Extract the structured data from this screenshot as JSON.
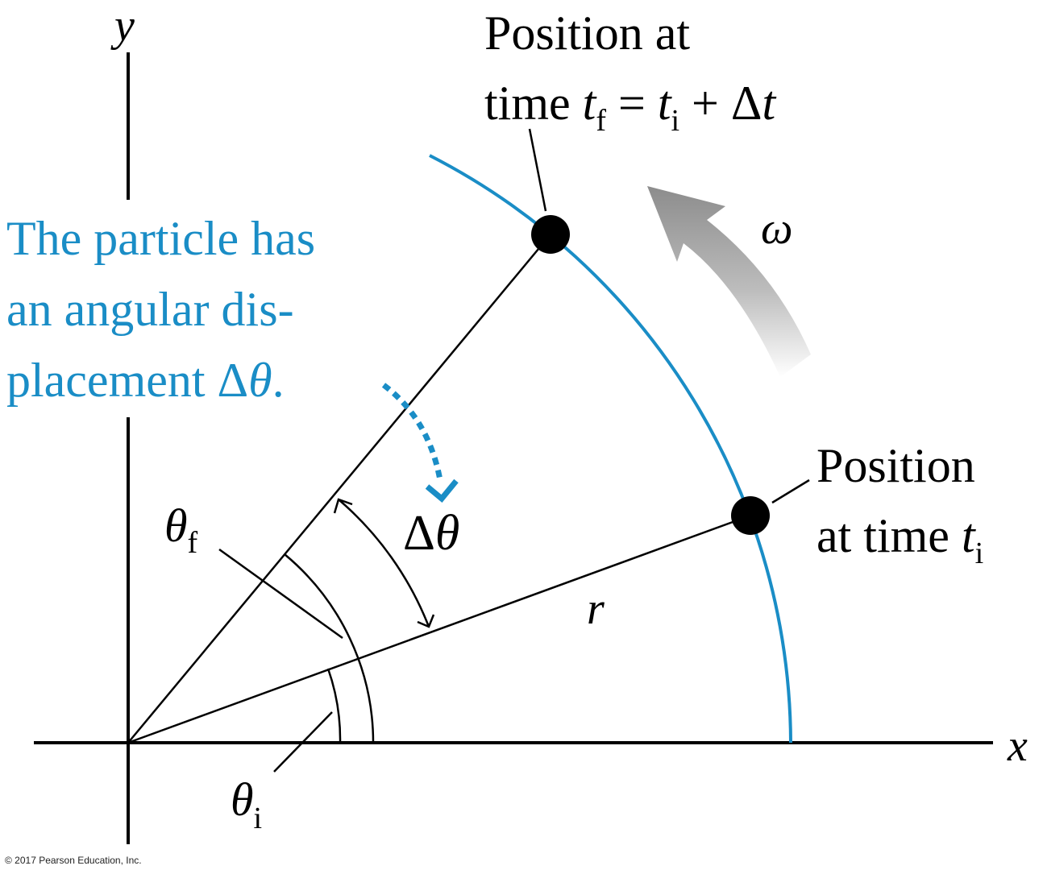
{
  "axes": {
    "x_label": "x",
    "y_label": "y"
  },
  "final_position_label": {
    "line1": "Position at",
    "line2_prefix": "time ",
    "t": "t",
    "f": "f",
    "eq": " = ",
    "i": "i",
    "plus": " + Δ",
    "t2": "t"
  },
  "initial_position_label": {
    "line1": "Position",
    "line2_prefix": "at time ",
    "t": "t",
    "i": "i"
  },
  "omega": "ω",
  "radius": "r",
  "theta_f": {
    "theta": "θ",
    "sub": "f"
  },
  "theta_i": {
    "theta": "θ",
    "sub": "i"
  },
  "delta_theta": {
    "delta": "Δ",
    "theta": "θ"
  },
  "callout": {
    "line1": "The particle has",
    "line2": "an angular dis-",
    "line3_prefix": "placement Δ",
    "line3_theta": "θ",
    "line3_suffix": "."
  },
  "copyright": "© 2017 Pearson Education, Inc.",
  "colors": {
    "arc": "#1a8dc6",
    "callout_text": "#1a8dc6",
    "omega_arrow": "#9a9a9a",
    "lines": "#000000"
  }
}
